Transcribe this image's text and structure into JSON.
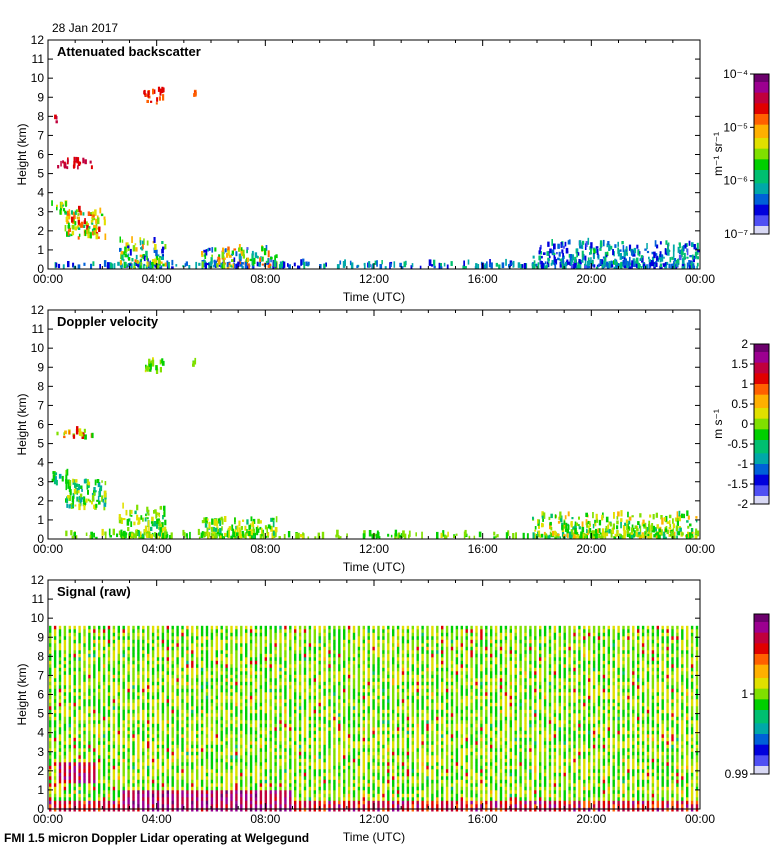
{
  "header": {
    "date": "28 Jan 2017"
  },
  "footer": {
    "text": "FMI 1.5 micron Doppler Lidar operating at Welgegund"
  },
  "colors": {
    "colormap": [
      "#d8d8f4",
      "#4f4ff4",
      "#0000dc",
      "#0060d8",
      "#00a8a8",
      "#00c070",
      "#00d000",
      "#80e000",
      "#e0e000",
      "#ffb000",
      "#ff6000",
      "#e00000",
      "#c0003c",
      "#9c0090",
      "#6c006c"
    ]
  },
  "chart_data": [
    {
      "id": "backscatter",
      "type": "heatmap",
      "title": "Attenuated backscatter",
      "xlabel": "Time (UTC)",
      "ylabel": "Height (km)",
      "xlim": [
        0,
        24
      ],
      "ylim": [
        0,
        12
      ],
      "x_tick_labels": [
        "00:00",
        "04:00",
        "08:00",
        "12:00",
        "16:00",
        "20:00",
        "00:00"
      ],
      "y_tick_labels": [
        "0",
        "1",
        "2",
        "3",
        "4",
        "5",
        "6",
        "7",
        "8",
        "9",
        "10",
        "11",
        "12"
      ],
      "colorbar": {
        "scale": "log",
        "units": "m⁻¹ sr⁻¹",
        "tick_labels": [
          "10⁻⁴",
          "10⁻⁵",
          "10⁻⁶",
          "10⁻⁷"
        ]
      },
      "features": [
        {
          "name": "boundary-layer",
          "t0": 0.2,
          "t1": 23.9,
          "h0": 0,
          "h1": 0.25,
          "c0": 0.12,
          "c1": 0.35
        },
        {
          "name": "morning-aerosol",
          "t0": 2.6,
          "t1": 4.3,
          "h0": 0,
          "h1": 1.4,
          "c0": 0.1,
          "c1": 0.7
        },
        {
          "name": "daytime-aerosol",
          "t0": 5.6,
          "t1": 8.4,
          "h0": 0,
          "h1": 1.0,
          "c0": 0.1,
          "c1": 0.75
        },
        {
          "name": "low-cloud-layer-a",
          "t0": 0.6,
          "t1": 2.1,
          "h0": 1.5,
          "h1": 3.0,
          "c0": 0.35,
          "c1": 0.8
        },
        {
          "name": "low-cloud-layer-b",
          "t0": 0.1,
          "t1": 0.7,
          "h0": 2.8,
          "h1": 3.4,
          "c0": 0.35,
          "c1": 0.6
        },
        {
          "name": "cloud-5km",
          "t0": 0.3,
          "t1": 1.6,
          "h0": 5.2,
          "h1": 5.6,
          "c0": 0.78,
          "c1": 0.86
        },
        {
          "name": "cloud-8km",
          "t0": 0.2,
          "t1": 0.3,
          "h0": 7.6,
          "h1": 7.9,
          "c0": 0.78,
          "c1": 0.85
        },
        {
          "name": "cloud-9km",
          "t0": 3.5,
          "t1": 4.2,
          "h0": 8.6,
          "h1": 9.3,
          "c0": 0.7,
          "c1": 0.82
        },
        {
          "name": "cloud-9km-b",
          "t0": 5.3,
          "t1": 5.4,
          "h0": 9.0,
          "h1": 9.2,
          "c0": 0.72,
          "c1": 0.8
        },
        {
          "name": "evening-aerosol",
          "t0": 17.8,
          "t1": 23.9,
          "h0": 0,
          "h1": 1.3,
          "c0": 0.1,
          "c1": 0.4
        }
      ]
    },
    {
      "id": "velocity",
      "type": "heatmap",
      "title": "Doppler velocity",
      "xlabel": "Time (UTC)",
      "ylabel": "Height (km)",
      "xlim": [
        0,
        24
      ],
      "ylim": [
        0,
        12
      ],
      "x_tick_labels": [
        "00:00",
        "04:00",
        "08:00",
        "12:00",
        "16:00",
        "20:00",
        "00:00"
      ],
      "y_tick_labels": [
        "0",
        "1",
        "2",
        "3",
        "4",
        "5",
        "6",
        "7",
        "8",
        "9",
        "10",
        "11",
        "12"
      ],
      "colorbar": {
        "scale": "linear",
        "units": "m s⁻¹",
        "range": [
          -2,
          2
        ],
        "tick_labels": [
          "2",
          "1.5",
          "1",
          "0.5",
          "0",
          "-0.5",
          "-1",
          "-1.5",
          "-2"
        ]
      },
      "features": [
        {
          "name": "boundary-layer",
          "t0": 0.2,
          "t1": 23.9,
          "h0": 0,
          "h1": 0.2,
          "c0": 0.4,
          "c1": 0.55
        },
        {
          "name": "morning-aerosol",
          "t0": 2.6,
          "t1": 4.3,
          "h0": 0,
          "h1": 1.6,
          "c0": 0.35,
          "c1": 0.6
        },
        {
          "name": "daytime-aerosol",
          "t0": 5.6,
          "t1": 8.4,
          "h0": 0,
          "h1": 1.0,
          "c0": 0.35,
          "c1": 0.6
        },
        {
          "name": "low-cloud-layer-a",
          "t0": 0.6,
          "t1": 2.1,
          "h0": 1.5,
          "h1": 3.0,
          "c0": 0.25,
          "c1": 0.6
        },
        {
          "name": "low-cloud-layer-b",
          "t0": 0.1,
          "t1": 0.7,
          "h0": 2.8,
          "h1": 3.4,
          "c0": 0.3,
          "c1": 0.5
        },
        {
          "name": "cloud-5km",
          "t0": 0.3,
          "t1": 1.6,
          "h0": 5.2,
          "h1": 5.6,
          "c0": 0.4,
          "c1": 0.85
        },
        {
          "name": "cloud-9km",
          "t0": 3.5,
          "t1": 4.2,
          "h0": 8.6,
          "h1": 9.3,
          "c0": 0.4,
          "c1": 0.55
        },
        {
          "name": "cloud-9km-b",
          "t0": 5.3,
          "t1": 5.4,
          "h0": 9.0,
          "h1": 9.2,
          "c0": 0.4,
          "c1": 0.5
        },
        {
          "name": "evening-aerosol",
          "t0": 17.8,
          "t1": 23.9,
          "h0": 0,
          "h1": 1.2,
          "c0": 0.35,
          "c1": 0.65
        }
      ]
    },
    {
      "id": "signal",
      "type": "heatmap",
      "title": "Signal (raw)",
      "xlabel": "Time (UTC)",
      "ylabel": "Height (km)",
      "xlim": [
        0,
        24
      ],
      "ylim": [
        0,
        12
      ],
      "data_top": 9.6,
      "x_tick_labels": [
        "00:00",
        "04:00",
        "08:00",
        "12:00",
        "16:00",
        "20:00",
        "00:00"
      ],
      "y_tick_labels": [
        "0",
        "1",
        "2",
        "3",
        "4",
        "5",
        "6",
        "7",
        "8",
        "9",
        "10",
        "11",
        "12"
      ],
      "colorbar": {
        "scale": "linear",
        "units": "",
        "range": [
          0.99,
          1.01
        ],
        "tick_labels": [
          "1",
          "0.99"
        ]
      },
      "features": [
        {
          "name": "near-surface-signal",
          "t0": 0.2,
          "t1": 23.9,
          "h0": 0,
          "h1": 0.6,
          "c0": 0.75,
          "c1": 0.9
        },
        {
          "name": "morning-enhanced",
          "t0": 2.6,
          "t1": 9.0,
          "h0": 0,
          "h1": 1.0,
          "c0": 0.85,
          "c1": 0.98
        },
        {
          "name": "cloud-layer",
          "t0": 0.3,
          "t1": 1.8,
          "h0": 1.5,
          "h1": 2.5,
          "c0": 0.82,
          "c1": 0.92
        }
      ]
    }
  ]
}
